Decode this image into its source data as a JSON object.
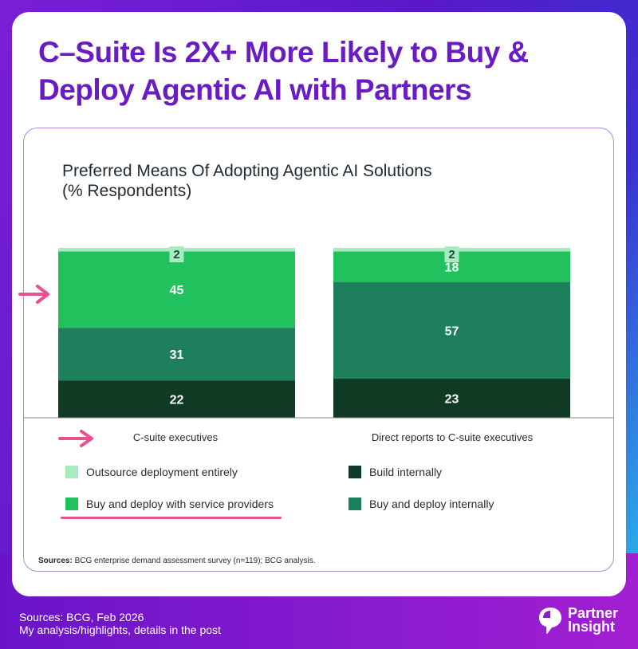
{
  "headline": "C–Suite Is 2X+ More Likely to Buy & Deploy Agentic AI with Partners",
  "colors": {
    "outsource": "#a7ebc0",
    "buy_service": "#21c25e",
    "buy_internal": "#1d7f5c",
    "build_internal": "#0f3b25",
    "highlight": "#ea4f91",
    "brand": "#6a1cc4"
  },
  "chart_data": {
    "type": "bar",
    "stacked": true,
    "title": "Preferred Means Of Adopting Agentic AI Solutions",
    "subtitle": "(% Respondents)",
    "categories": [
      "C-suite executives",
      "Direct reports to C-suite executives"
    ],
    "series": [
      {
        "name": "Build internally",
        "key": "build_internal",
        "values": [
          22,
          23
        ]
      },
      {
        "name": "Buy and deploy internally",
        "key": "buy_internal",
        "values": [
          31,
          57
        ]
      },
      {
        "name": "Buy and deploy with service providers",
        "key": "buy_service",
        "values": [
          45,
          18
        ]
      },
      {
        "name": "Outsource deployment entirely",
        "key": "outsource",
        "values": [
          2,
          2
        ]
      }
    ],
    "ylim": [
      0,
      100
    ],
    "highlighted_category": "C-suite executives",
    "highlighted_series": "Buy and deploy with service providers"
  },
  "legend": {
    "left": [
      "Outsource deployment entirely",
      "Buy and deploy with service providers"
    ],
    "right": [
      "Build internally",
      "Buy and deploy internally"
    ]
  },
  "sources": {
    "label": "Sources:",
    "text": "BCG enterprise demand assessment survey (n=119); BCG analysis."
  },
  "footer": {
    "line1": "Sources:  BCG, Feb 2026",
    "line2": "My analysis/highlights, details in the post"
  },
  "brand": {
    "line1": "Partner",
    "line2": "Insight",
    "icon": "partner-insight-logo-icon"
  }
}
